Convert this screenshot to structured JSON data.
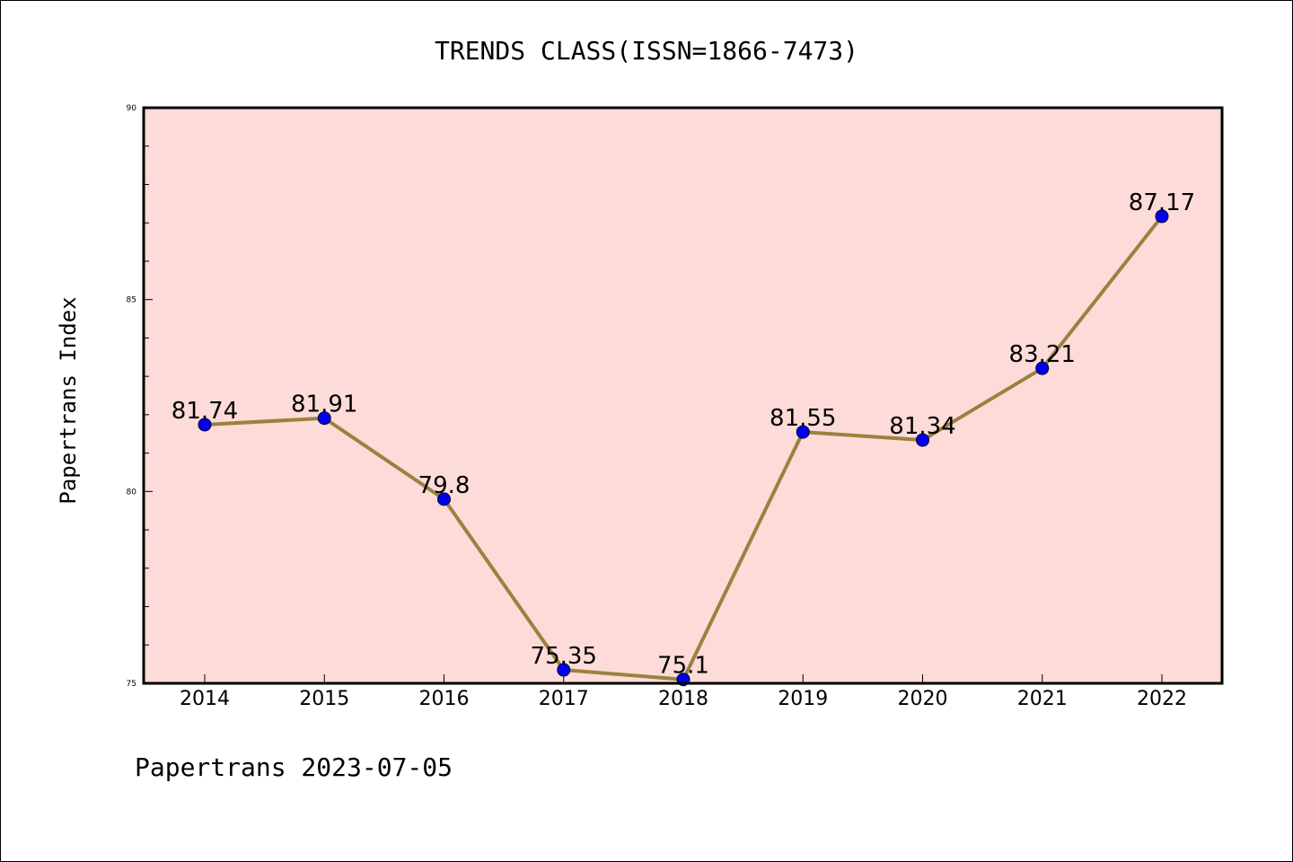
{
  "chart_data": {
    "type": "line",
    "title": "TRENDS CLASS(ISSN=1866-7473)",
    "xlabel": "",
    "ylabel": "Papertrans Index",
    "footer": "Papertrans 2023-07-05",
    "categories": [
      "2014",
      "2015",
      "2016",
      "2017",
      "2018",
      "2019",
      "2020",
      "2021",
      "2022"
    ],
    "series": [
      {
        "values": [
          81.74,
          81.91,
          79.8,
          75.35,
          75.1,
          81.55,
          81.34,
          83.21,
          87.17
        ],
        "labels": [
          "81.74",
          "81.91",
          "79.8",
          "75.35",
          "75.1",
          "81.55",
          "81.34",
          "83.21",
          "87.17"
        ]
      }
    ],
    "ylim": [
      75,
      90
    ],
    "yticks": [
      "75",
      "80",
      "85",
      "90"
    ],
    "grid": false,
    "colors": {
      "plot_background": "#fddbd8",
      "line": "#9a8240",
      "marker": "#0000ee"
    }
  }
}
